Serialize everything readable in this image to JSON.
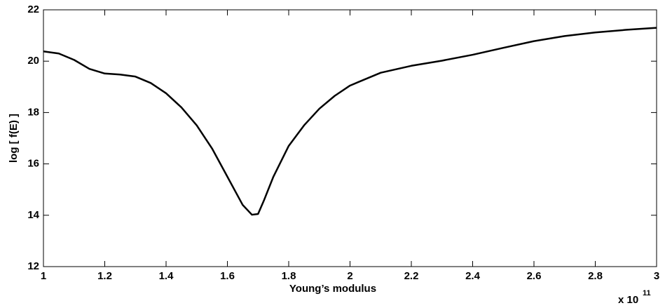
{
  "chart_data": {
    "type": "line",
    "x_label": "Young’s modulus",
    "y_label": "log [ f(E) ]",
    "x_multiplier": {
      "base": "x 10",
      "exponent": "11"
    },
    "x": [
      1,
      1.05,
      1.1,
      1.15,
      1.2,
      1.25,
      1.3,
      1.35,
      1.4,
      1.45,
      1.5,
      1.55,
      1.6,
      1.65,
      1.68,
      1.7,
      1.72,
      1.75,
      1.8,
      1.85,
      1.9,
      1.95,
      2.0,
      2.1,
      2.2,
      2.3,
      2.4,
      2.5,
      2.6,
      2.7,
      2.8,
      2.9,
      3.0
    ],
    "series": [
      {
        "color": "#000000",
        "values": [
          20.38,
          20.3,
          20.05,
          19.7,
          19.52,
          19.48,
          19.4,
          19.15,
          18.75,
          18.2,
          17.5,
          16.6,
          15.5,
          14.4,
          14.02,
          14.05,
          14.6,
          15.5,
          16.7,
          17.5,
          18.15,
          18.65,
          19.05,
          19.55,
          19.82,
          20.02,
          20.25,
          20.52,
          20.78,
          20.98,
          21.12,
          21.22,
          21.3
        ]
      }
    ],
    "xlim": [
      1,
      3
    ],
    "ylim": [
      12,
      22
    ],
    "xticks": [
      1,
      1.2,
      1.4,
      1.6,
      1.8,
      2,
      2.2,
      2.4,
      2.6,
      2.8,
      3
    ],
    "yticks": [
      12,
      14,
      16,
      18,
      20,
      22
    ],
    "grid": false
  }
}
